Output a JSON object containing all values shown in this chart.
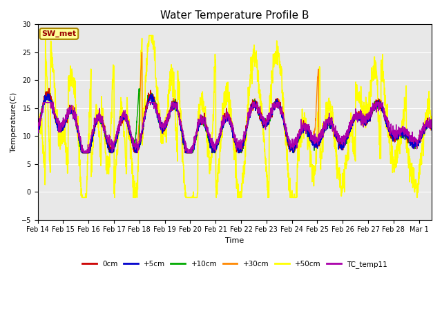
{
  "title": "Water Temperature Profile B",
  "xlabel": "Time",
  "ylabel": "Temperature(C)",
  "ylim": [
    -5,
    30
  ],
  "yticks": [
    -5,
    0,
    5,
    10,
    15,
    20,
    25,
    30
  ],
  "background_color": "#ffffff",
  "plot_bg_color": "#e8e8e8",
  "annotation_text": "SW_met",
  "annotation_bg": "#ffff99",
  "annotation_fg": "#990000",
  "annotation_border": "#aa8800",
  "series_colors": {
    "0cm": "#cc0000",
    "+5cm": "#0000cc",
    "+10cm": "#00aa00",
    "+30cm": "#ff8800",
    "+50cm": "#ffff00",
    "TC_temp11": "#aa00aa"
  },
  "series_lw": {
    "0cm": 1.0,
    "+5cm": 1.0,
    "+10cm": 1.0,
    "+30cm": 1.0,
    "+50cm": 1.2,
    "TC_temp11": 1.0
  },
  "tick_labels": [
    "Feb 14",
    "Feb 15",
    "Feb 16",
    "Feb 17",
    "Feb 18",
    "Feb 19",
    "Feb 20",
    "Feb 21",
    "Feb 22",
    "Feb 23",
    "Feb 24",
    "Feb 25",
    "Feb 26",
    "Feb 27",
    "Feb 28",
    "Mar 1"
  ],
  "tick_fontsize": 7,
  "title_fontsize": 11,
  "axis_label_fontsize": 8
}
